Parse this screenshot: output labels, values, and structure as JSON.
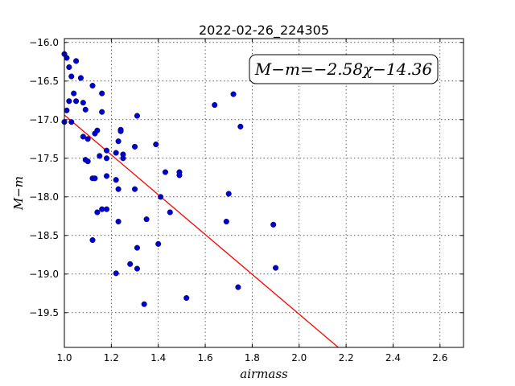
{
  "chart_data": {
    "type": "scatter",
    "title": "2022-02-26_224305",
    "xlabel": "airmass",
    "ylabel": "M−m",
    "xlim": [
      1.0,
      2.7
    ],
    "ylim": [
      -19.95,
      -15.95
    ],
    "xticks": [
      1.0,
      1.2,
      1.4,
      1.6,
      1.8,
      2.0,
      2.2,
      2.4,
      2.6
    ],
    "xtick_labels": [
      "1.0",
      "1.2",
      "1.4",
      "1.6",
      "1.8",
      "2.0",
      "2.2",
      "2.4",
      "2.6"
    ],
    "yticks": [
      -16.0,
      -16.5,
      -17.0,
      -17.5,
      -18.0,
      -18.5,
      -19.0,
      -19.5
    ],
    "ytick_labels": [
      "−16.0",
      "−16.5",
      "−17.0",
      "−17.5",
      "−18.0",
      "−18.5",
      "−19.0",
      "−19.5"
    ],
    "grid": true,
    "annotation": "M−m=−2.58χ−14.36",
    "annotation_position": "top-right",
    "fit_line": {
      "slope": -2.58,
      "intercept": -14.36,
      "color": "#ff0000"
    },
    "point_color": "#0000cc",
    "points": [
      [
        1.0,
        -16.15
      ],
      [
        1.01,
        -16.2
      ],
      [
        1.02,
        -16.32
      ],
      [
        1.03,
        -16.44
      ],
      [
        1.05,
        -16.24
      ],
      [
        1.07,
        -16.46
      ],
      [
        1.04,
        -16.66
      ],
      [
        1.02,
        -16.76
      ],
      [
        1.05,
        -16.76
      ],
      [
        1.08,
        -16.78
      ],
      [
        1.01,
        -16.88
      ],
      [
        1.09,
        -16.87
      ],
      [
        1.12,
        -16.56
      ],
      [
        1.16,
        -16.66
      ],
      [
        1.16,
        -16.9
      ],
      [
        1.0,
        -17.03
      ],
      [
        1.03,
        -17.03
      ],
      [
        1.14,
        -17.14
      ],
      [
        1.13,
        -17.18
      ],
      [
        1.08,
        -17.22
      ],
      [
        1.1,
        -17.25
      ],
      [
        1.24,
        -17.13
      ],
      [
        1.24,
        -17.15
      ],
      [
        1.31,
        -16.95
      ],
      [
        1.23,
        -17.28
      ],
      [
        1.3,
        -17.35
      ],
      [
        1.39,
        -17.32
      ],
      [
        1.18,
        -17.4
      ],
      [
        1.22,
        -17.43
      ],
      [
        1.25,
        -17.45
      ],
      [
        1.15,
        -17.47
      ],
      [
        1.09,
        -17.52
      ],
      [
        1.1,
        -17.54
      ],
      [
        1.18,
        -17.5
      ],
      [
        1.25,
        -17.5
      ],
      [
        1.43,
        -17.68
      ],
      [
        1.49,
        -17.68
      ],
      [
        1.49,
        -17.72
      ],
      [
        1.18,
        -17.73
      ],
      [
        1.12,
        -17.76
      ],
      [
        1.13,
        -17.76
      ],
      [
        1.22,
        -17.78
      ],
      [
        1.23,
        -17.9
      ],
      [
        1.3,
        -17.9
      ],
      [
        1.41,
        -18.0
      ],
      [
        1.7,
        -17.96
      ],
      [
        1.14,
        -18.2
      ],
      [
        1.16,
        -18.16
      ],
      [
        1.18,
        -18.16
      ],
      [
        1.45,
        -18.2
      ],
      [
        1.35,
        -18.29
      ],
      [
        1.23,
        -18.32
      ],
      [
        1.69,
        -18.32
      ],
      [
        1.89,
        -18.36
      ],
      [
        1.12,
        -18.56
      ],
      [
        1.4,
        -18.61
      ],
      [
        1.31,
        -18.66
      ],
      [
        1.28,
        -18.87
      ],
      [
        1.31,
        -18.93
      ],
      [
        1.9,
        -18.92
      ],
      [
        1.22,
        -18.99
      ],
      [
        1.52,
        -19.31
      ],
      [
        1.74,
        -19.17
      ],
      [
        1.34,
        -19.39
      ],
      [
        1.64,
        -16.81
      ],
      [
        1.72,
        -16.67
      ],
      [
        1.75,
        -17.09
      ]
    ]
  }
}
